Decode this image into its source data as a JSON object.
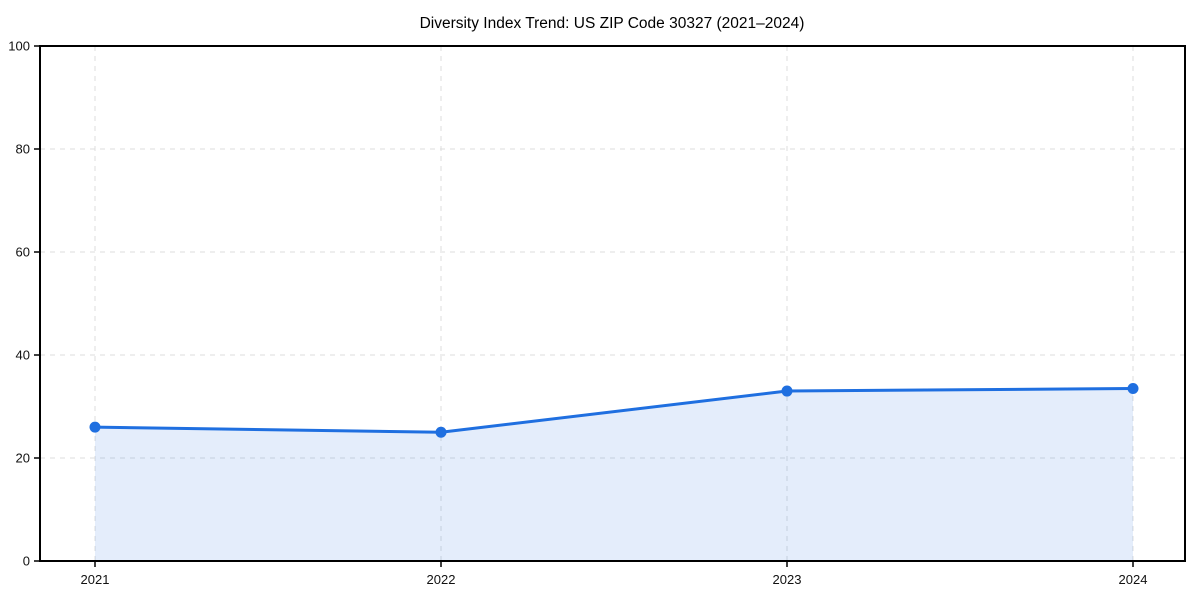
{
  "figure": {
    "background_color": "#ffffff"
  },
  "chart_data": {
    "type": "area",
    "title": "Diversity Index Trend: US ZIP Code 30327 (2021–2024)",
    "xlabel": "",
    "ylabel": "",
    "x": [
      2021,
      2022,
      2023,
      2024
    ],
    "xticks": [
      "2021",
      "2022",
      "2023",
      "2024"
    ],
    "series": [
      {
        "name": "Diversity Index",
        "values": [
          26,
          25,
          33,
          33.5
        ]
      }
    ],
    "ylim": [
      0,
      100
    ],
    "yticks": [
      0,
      20,
      40,
      60,
      80,
      100
    ],
    "grid": true,
    "grid_style": "dashed",
    "legend_position": "none",
    "marker": "circle",
    "colors": {
      "line": "#1f6fe0",
      "marker": "#1f6fe0",
      "fill": "rgba(31,111,224,0.12)",
      "grid": "#dcdcdc",
      "spine": "#000000",
      "tick_text": "#111111",
      "title_text": "#000000"
    }
  }
}
